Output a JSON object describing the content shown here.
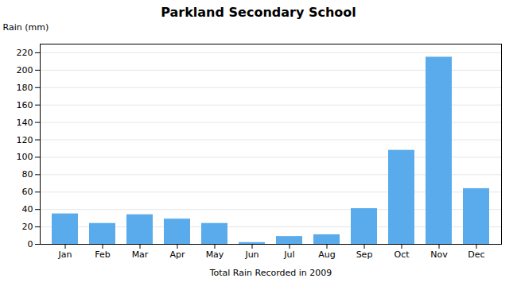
{
  "chart_data": {
    "type": "bar",
    "title": "Parkland Secondary School",
    "xlabel": "Total Rain Recorded in 2009",
    "ylabel": "Rain (mm)",
    "categories": [
      "Jan",
      "Feb",
      "Mar",
      "Apr",
      "May",
      "Jun",
      "Jul",
      "Aug",
      "Sep",
      "Oct",
      "Nov",
      "Dec"
    ],
    "values": [
      35,
      24,
      34,
      29,
      24,
      2,
      9,
      11,
      41,
      108,
      215,
      64
    ],
    "color": "#5aabec",
    "ylim": [
      0,
      230
    ],
    "yticks": [
      0,
      20,
      40,
      60,
      80,
      100,
      120,
      140,
      160,
      180,
      200,
      220
    ],
    "grid": true
  }
}
